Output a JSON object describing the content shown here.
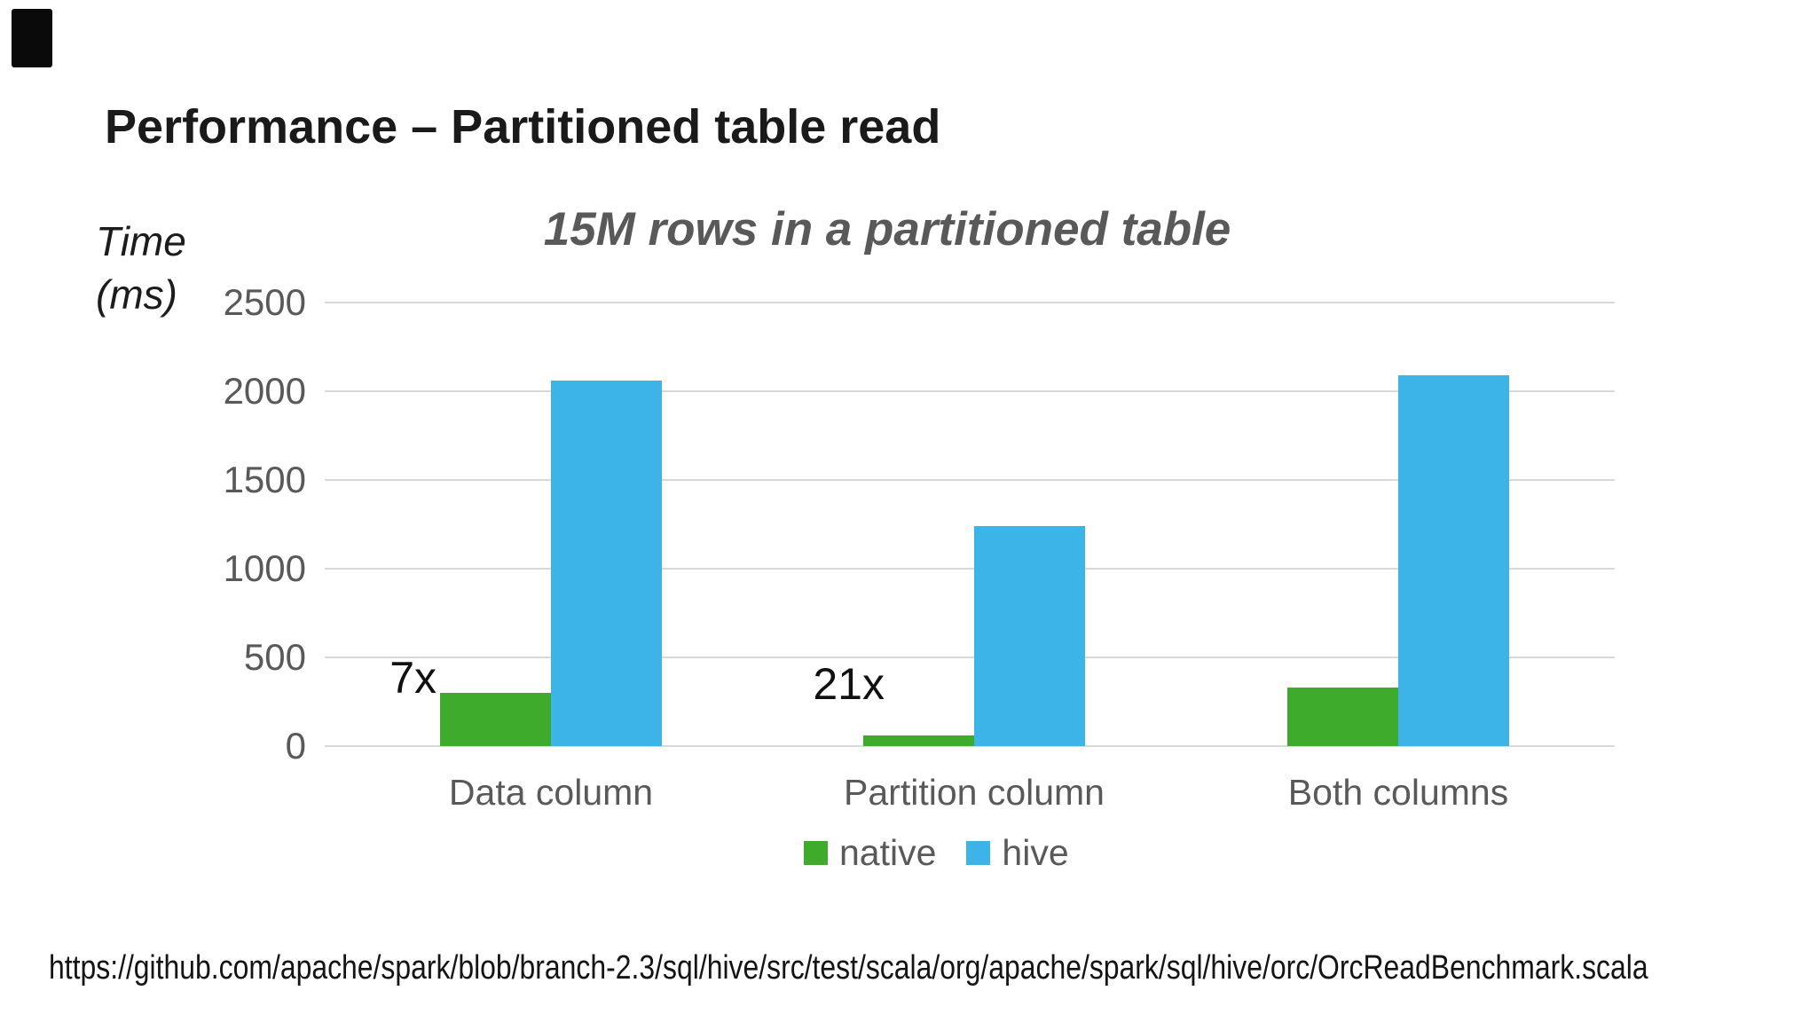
{
  "page": {
    "title": "Performance – Partitioned table read",
    "footer_url": "https://github.com/apache/spark/blob/branch-2.3/sql/hive/src/test/scala/org/apache/spark/sql/hive/orc/OrcReadBenchmark.scala"
  },
  "chart_data": {
    "type": "bar",
    "title": "15M rows in a partitioned table",
    "ylabel": "Time (ms)",
    "ylabel_lines": [
      "Time",
      "(ms)"
    ],
    "categories": [
      "Data column",
      "Partition column",
      "Both columns"
    ],
    "series": [
      {
        "name": "native",
        "color": "#3FAB2C",
        "values": [
          300,
          60,
          330
        ]
      },
      {
        "name": "hive",
        "color": "#3DB4E7",
        "values": [
          2060,
          1240,
          2090
        ]
      }
    ],
    "annotations": [
      {
        "text": "7x",
        "category": "Data column"
      },
      {
        "text": "21x",
        "category": "Partition column"
      }
    ],
    "yticks": [
      0,
      500,
      1000,
      1500,
      2000,
      2500
    ],
    "ylim": [
      0,
      2500
    ],
    "grid": true,
    "gridline_color": "#d9d9d9",
    "legend_position": "bottom",
    "legend_entries": [
      "native",
      "hive"
    ],
    "text_color": "#595959"
  }
}
